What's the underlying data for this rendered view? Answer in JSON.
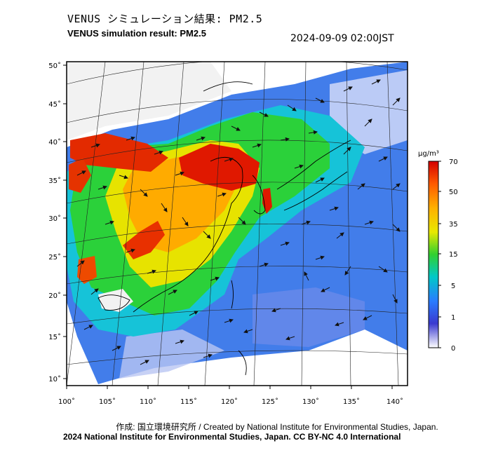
{
  "header": {
    "title_jp": "VENUS シミュレーション結果: PM2.5",
    "title_en": "VENUS simulation result: PM2.5",
    "timestamp": "2024-09-09 02:00JST"
  },
  "map": {
    "lon_ticks": [
      "100˚",
      "105˚",
      "110˚",
      "115˚",
      "120˚",
      "125˚",
      "130˚",
      "135˚",
      "140˚"
    ],
    "lat_ticks": [
      "50˚",
      "45˚",
      "40˚",
      "35˚",
      "30˚",
      "25˚",
      "20˚",
      "15˚",
      "10˚"
    ],
    "lon_range": [
      100,
      142
    ],
    "lat_range": [
      9,
      51
    ]
  },
  "colorbar": {
    "unit": "μg/m³",
    "ticks": [
      "70",
      "50",
      "35",
      "15",
      "5",
      "1",
      "0"
    ],
    "colors": [
      "#e60000",
      "#ff6600",
      "#ffcc00",
      "#33cc33",
      "#00cccc",
      "#3388ff",
      "#3333cc",
      "#ffffff"
    ]
  },
  "footer": {
    "credit_line": "作成: 国立環境研究所 / Created by National Institute for Environmental Studies, Japan.",
    "copyright_line": "2024 National Institute for Environmental Studies, Japan. CC BY-NC 4.0 International"
  }
}
